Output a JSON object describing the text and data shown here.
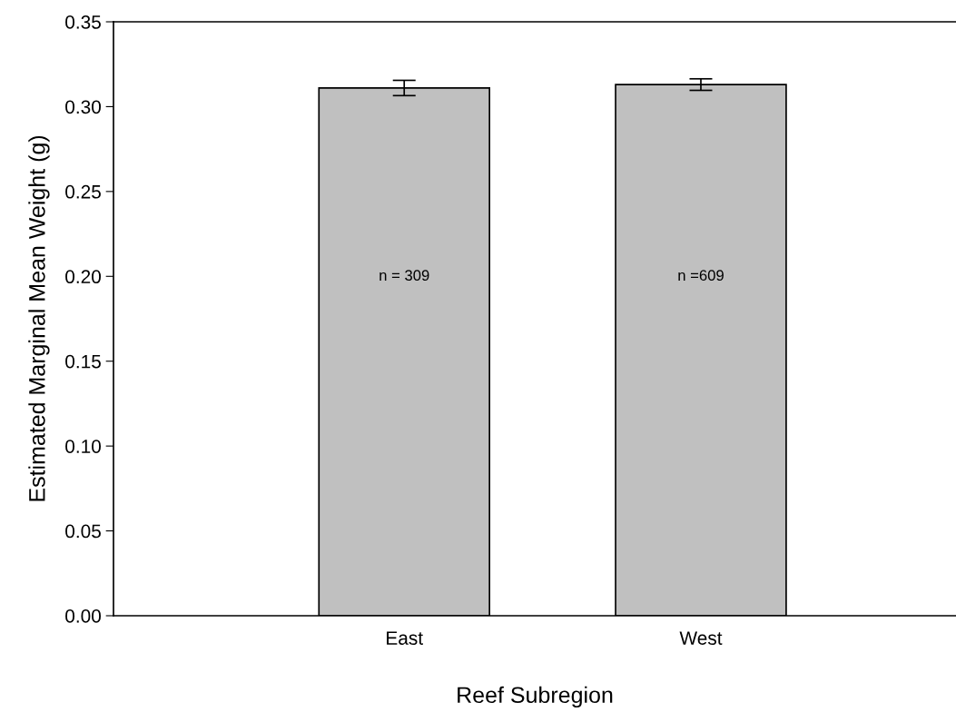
{
  "chart_data": {
    "type": "bar",
    "xlabel": "Reef Subregion",
    "ylabel": "Estimated Marginal Mean Weight (g)",
    "categories": [
      "East",
      "West"
    ],
    "series": [
      {
        "color": "#c0c0c0",
        "values": [
          0.311,
          0.313
        ],
        "errors": [
          0.0045,
          0.0034
        ]
      }
    ],
    "annotations": [
      "n = 309",
      "n =609"
    ],
    "ylim": [
      0,
      0.35
    ],
    "yticks": [
      {
        "value": 0,
        "label": "0.00"
      },
      {
        "value": 0.05,
        "label": "0.05"
      },
      {
        "value": 0.1,
        "label": "0.10"
      },
      {
        "value": 0.15,
        "label": "0.15"
      },
      {
        "value": 0.2,
        "label": "0.20"
      },
      {
        "value": 0.25,
        "label": "0.25"
      },
      {
        "value": 0.3,
        "label": "0.30"
      },
      {
        "value": 0.35,
        "label": "0.35"
      }
    ],
    "grid": false
  }
}
